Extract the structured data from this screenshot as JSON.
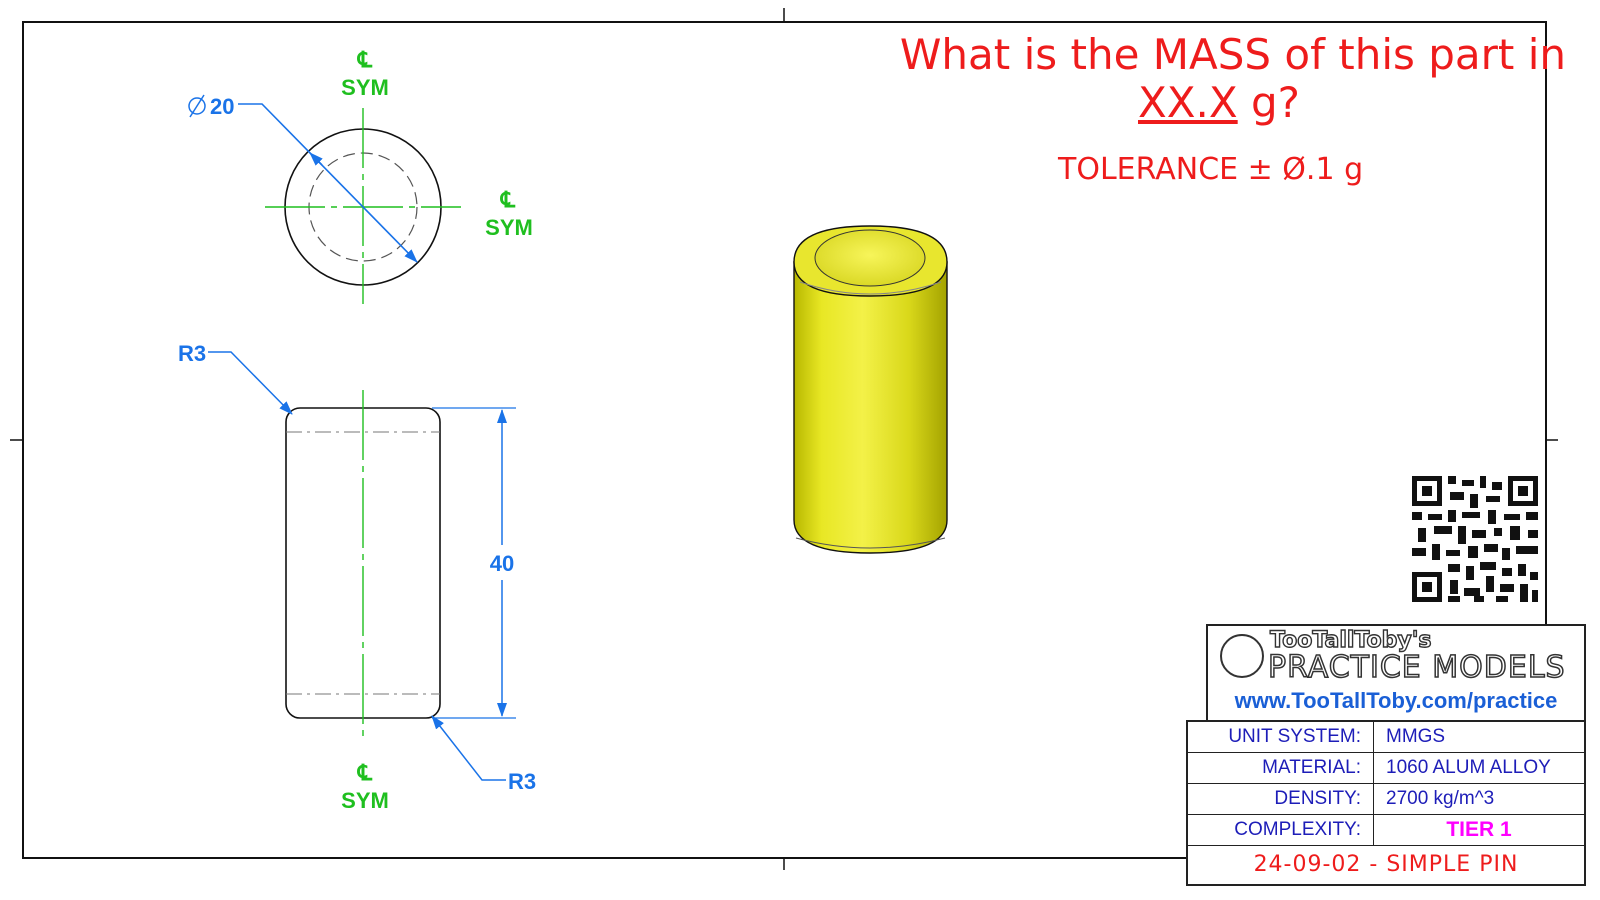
{
  "question": {
    "line1": "What is the MASS of this part in",
    "blank": "XX.X",
    "unit": " g?",
    "tolerance": "TOLERANCE ± Ø.1 g"
  },
  "dimensions": {
    "diameter": "20",
    "length": "40",
    "radius_top": "R3",
    "radius_bottom": "R3"
  },
  "centerline": {
    "symbol": "℄",
    "label": "SYM"
  },
  "logo": {
    "title": "TooTallToby's",
    "subtitle": "PRACTICE MODELS",
    "url": "www.TooTallToby.com/practice"
  },
  "title_block": {
    "rows": [
      {
        "key": "UNIT SYSTEM:",
        "value": "MMGS"
      },
      {
        "key": "MATERIAL:",
        "value": "1060 ALUM ALLOY"
      },
      {
        "key": "DENSITY:",
        "value": "2700 kg/m^3"
      },
      {
        "key": "COMPLEXITY:",
        "value": "TIER 1"
      }
    ],
    "drawing_name": "24-09-02 - SIMPLE PIN"
  },
  "colors": {
    "dimension": "#1a73e8",
    "centerline": "#1fbf1f",
    "question": "#ee1c1c",
    "part": "#e0df1a",
    "tier": "#ff00ff"
  },
  "icons": [
    "qr-code-icon",
    "tootalltoby-logo-icon",
    "diameter-symbol-icon",
    "centerline-symbol-icon"
  ]
}
